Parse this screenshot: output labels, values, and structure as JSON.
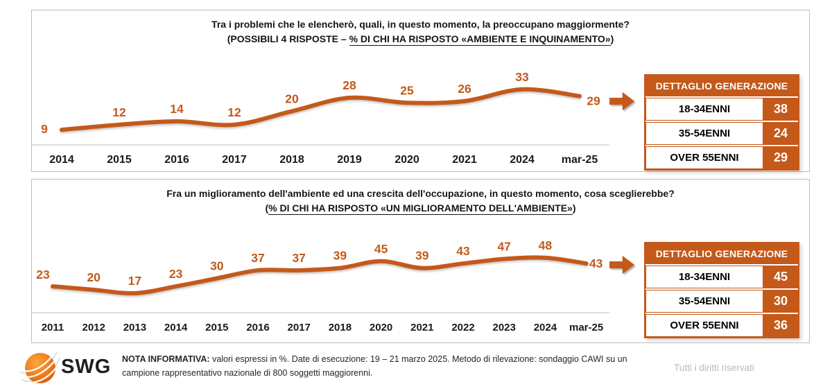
{
  "colors": {
    "accent": "#C4591A",
    "axis": "#c9c9c9",
    "panel_border": "#bdbdbd",
    "year_label": "#1a1a1a",
    "rights_gray": "#b9b9b9"
  },
  "chart_data": [
    {
      "type": "line",
      "title": "Tra i problemi che le elencherò, quali, in questo momento, la preoccupano maggiormente?",
      "subtitle_prefix": "(POSSIBILI 4 RISPOSTE – ",
      "subtitle_underlined": "% DI CHI HA RISPOSTO «AMBIENTE E INQUINAMENTO»",
      "subtitle_suffix": ")",
      "categories": [
        "2014",
        "2015",
        "2016",
        "2017",
        "2018",
        "2019",
        "2020",
        "2021",
        "2024",
        "mar-25"
      ],
      "values": [
        9,
        12,
        14,
        12,
        20,
        28,
        25,
        26,
        33,
        29
      ],
      "ylim": [
        0,
        56
      ],
      "grid": false,
      "legend": "none",
      "line_color": "#C4591A",
      "label_color": "#C4591A",
      "detail_table": {
        "header": "DETTAGLIO GENERAZIONE",
        "rows": [
          {
            "label": "18-34ENNI",
            "value": "38"
          },
          {
            "label": "35-54ENNI",
            "value": "24"
          },
          {
            "label": "OVER 55ENNI",
            "value": "29"
          }
        ]
      }
    },
    {
      "type": "line",
      "title": "Fra un miglioramento dell'ambiente ed una crescita dell'occupazione, in questo momento, cosa sceglierebbe?",
      "subtitle_prefix": "(",
      "subtitle_underlined": "% DI CHI HA RISPOSTO «UN MIGLIORAMENTO DELL'AMBIENTE»",
      "subtitle_suffix": ")",
      "categories": [
        "2011",
        "2012",
        "2013",
        "2014",
        "2015",
        "2016",
        "2017",
        "2018",
        "2020",
        "2021",
        "2022",
        "2023",
        "2024",
        "mar-25"
      ],
      "values": [
        23,
        20,
        17,
        23,
        30,
        37,
        37,
        39,
        45,
        39,
        43,
        47,
        48,
        43
      ],
      "ylim": [
        0,
        80
      ],
      "grid": false,
      "legend": "none",
      "line_color": "#C4591A",
      "label_color": "#C4591A",
      "detail_table": {
        "header": "DETTAGLIO GENERAZIONE",
        "rows": [
          {
            "label": "18-34ENNI",
            "value": "45"
          },
          {
            "label": "35-54ENNI",
            "value": "30"
          },
          {
            "label": "OVER 55ENNI",
            "value": "36"
          }
        ]
      }
    }
  ],
  "footer": {
    "logo_text": "SWG",
    "note_bold": "NOTA INFORMATIVA:",
    "note_rest": " valori espressi in %. Date di esecuzione: 19 – 21 marzo 2025. Metodo di rilevazione: sondaggio CAWI su un campione rappresentativo nazionale di 800 soggetti maggiorenni.",
    "rights": "Tutti i diritti riservati"
  }
}
